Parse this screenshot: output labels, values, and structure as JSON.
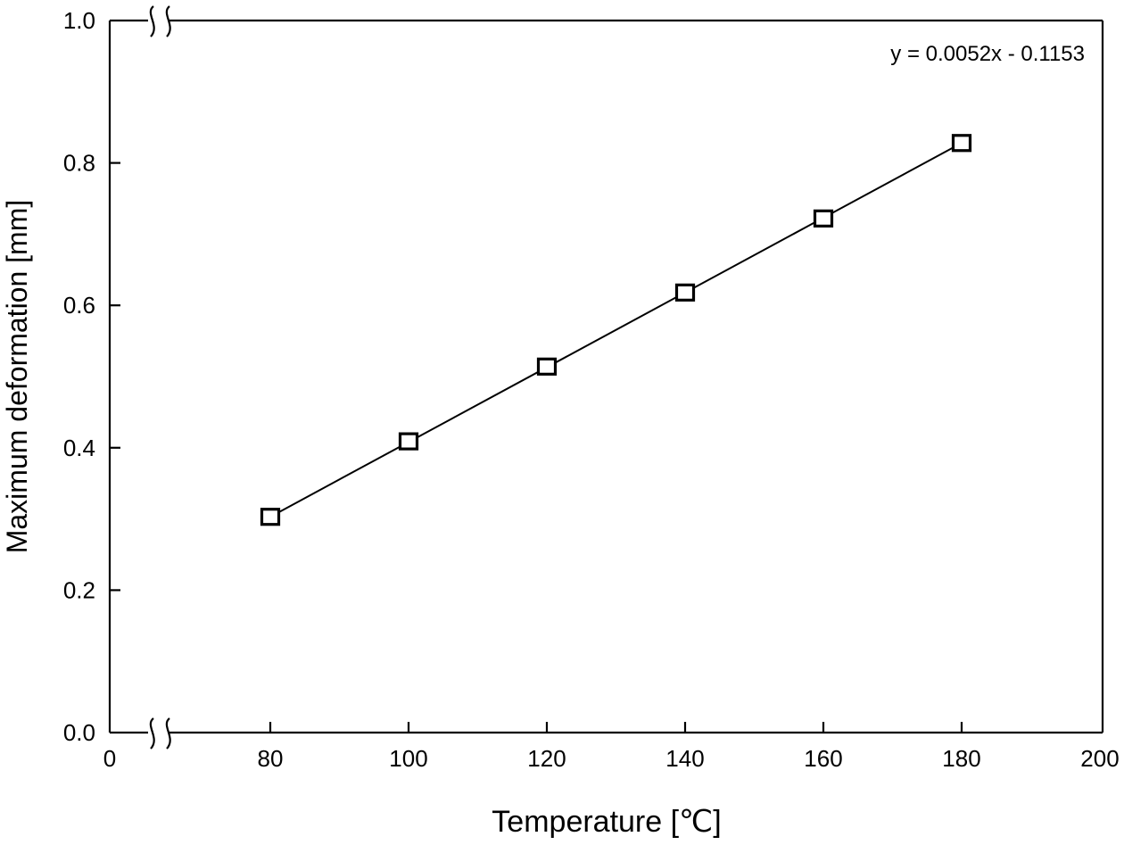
{
  "chart_data": {
    "type": "scatter",
    "title": "",
    "xlabel": "Temperature [℃]",
    "ylabel": "Maximum deformation [mm]",
    "xlim": [
      0,
      200
    ],
    "ylim": [
      0.0,
      1.0
    ],
    "x_axis_break": true,
    "xticks": [
      0,
      80,
      100,
      120,
      140,
      160,
      180,
      200
    ],
    "yticks": [
      "0.0",
      "0.2",
      "0.4",
      "0.6",
      "0.8",
      "1.0"
    ],
    "grid": false,
    "marker": "open-square",
    "series": [
      {
        "x": [
          80,
          100,
          120,
          140,
          160,
          180
        ],
        "y": [
          0.303,
          0.409,
          0.514,
          0.618,
          0.722,
          0.828
        ]
      }
    ],
    "fit": {
      "slope": 0.0052,
      "intercept": -0.1153,
      "x_range": [
        80,
        180
      ]
    },
    "annotation": "y = 0.0052x - 0.1153",
    "line_color": "#000000"
  }
}
